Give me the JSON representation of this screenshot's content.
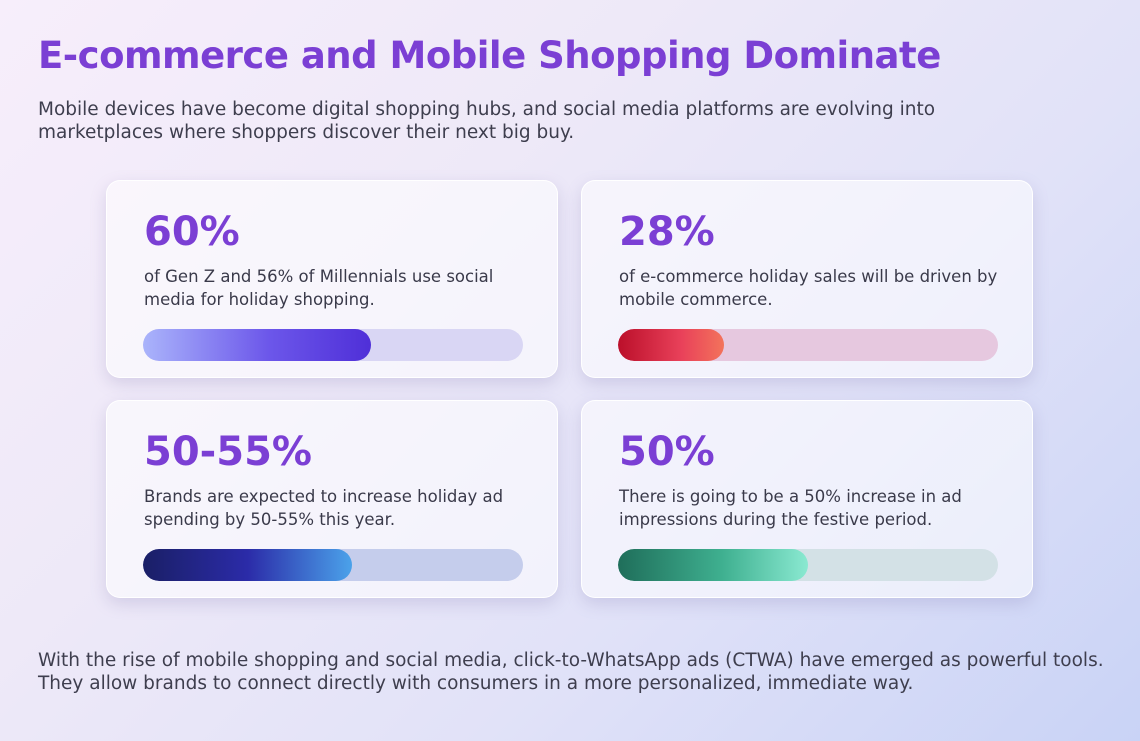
{
  "title": "E-commerce and Mobile Shopping Dominate",
  "intro": "Mobile devices have become digital shopping hubs, and social media platforms are evolving into marketplaces where shoppers discover their next big buy.",
  "cards": [
    {
      "stat": "60%",
      "description": "of Gen Z and 56% of Millennials use social media for holiday shopping.",
      "progress_percent": 60
    },
    {
      "stat": "28%",
      "description": "of e-commerce holiday sales will be driven by mobile commerce.",
      "progress_percent": 28
    },
    {
      "stat": "50-55%",
      "description": "Brands are expected to increase holiday ad spending by 50-55% this year.",
      "progress_percent": 55
    },
    {
      "stat": "50%",
      "description": "There is going to be a 50% increase in ad impressions during the festive period.",
      "progress_percent": 50
    }
  ],
  "outro": "With the rise of mobile shopping and social media, click-to-WhatsApp ads (CTWA) have emerged as powerful tools. They allow brands to connect directly with consumers in a more personalized, immediate way.",
  "colors": {
    "accent_purple": "#7b3fd4",
    "bar1": "#5a3ddc",
    "bar2": "#d8283f",
    "bar3": "#2b2ba8",
    "bar4": "#3fb090"
  }
}
